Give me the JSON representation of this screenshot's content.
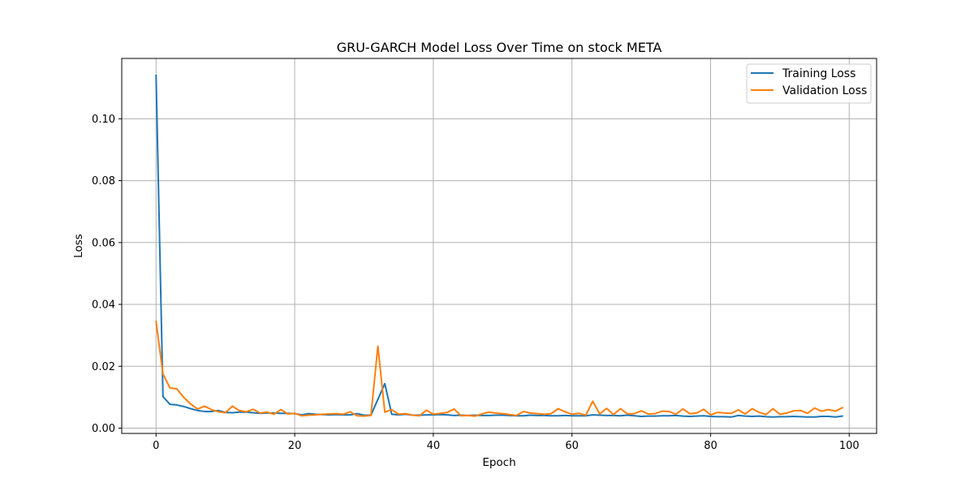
{
  "chart_data": {
    "type": "line",
    "title": "GRU-GARCH Model Loss Over Time on stock META",
    "xlabel": "Epoch",
    "ylabel": "Loss",
    "xlim": [
      -4.95,
      103.95
    ],
    "ylim": [
      -0.0017,
      0.1195
    ],
    "xticks": [
      0,
      20,
      40,
      60,
      80,
      100
    ],
    "xtick_labels": [
      "0",
      "20",
      "40",
      "60",
      "80",
      "100"
    ],
    "yticks": [
      0.0,
      0.02,
      0.04,
      0.06,
      0.08,
      0.1
    ],
    "ytick_labels": [
      "0.00",
      "0.02",
      "0.04",
      "0.06",
      "0.08",
      "0.10"
    ],
    "grid": true,
    "legend_position": "top-right",
    "series": [
      {
        "name": "Training Loss",
        "color": "#1f77b4",
        "x": [
          0,
          1,
          2,
          3,
          4,
          5,
          6,
          7,
          8,
          9,
          10,
          11,
          12,
          13,
          14,
          15,
          16,
          17,
          18,
          19,
          20,
          21,
          22,
          23,
          24,
          25,
          26,
          27,
          28,
          29,
          30,
          31,
          32,
          33,
          34,
          35,
          36,
          37,
          38,
          39,
          40,
          41,
          42,
          43,
          44,
          45,
          46,
          47,
          48,
          49,
          50,
          51,
          52,
          53,
          54,
          55,
          56,
          57,
          58,
          59,
          60,
          61,
          62,
          63,
          64,
          65,
          66,
          67,
          68,
          69,
          70,
          71,
          72,
          73,
          74,
          75,
          76,
          77,
          78,
          79,
          80,
          81,
          82,
          83,
          84,
          85,
          86,
          87,
          88,
          89,
          90,
          91,
          92,
          93,
          94,
          95,
          96,
          97,
          98,
          99
        ],
        "values": [
          0.114,
          0.0102,
          0.0077,
          0.0075,
          0.007,
          0.0063,
          0.0057,
          0.0054,
          0.0054,
          0.0057,
          0.0051,
          0.005,
          0.0052,
          0.0052,
          0.005,
          0.0048,
          0.0049,
          0.0049,
          0.0048,
          0.0048,
          0.0047,
          0.0043,
          0.0047,
          0.0045,
          0.0044,
          0.0043,
          0.0044,
          0.0043,
          0.0043,
          0.0047,
          0.0042,
          0.0042,
          0.0093,
          0.0144,
          0.0045,
          0.0043,
          0.0045,
          0.0042,
          0.0042,
          0.0043,
          0.0043,
          0.0044,
          0.0043,
          0.0041,
          0.0042,
          0.0041,
          0.0042,
          0.0041,
          0.0041,
          0.0042,
          0.0042,
          0.0041,
          0.004,
          0.004,
          0.0042,
          0.0041,
          0.0041,
          0.004,
          0.004,
          0.0041,
          0.004,
          0.004,
          0.004,
          0.0043,
          0.0042,
          0.0041,
          0.0041,
          0.004,
          0.0042,
          0.004,
          0.0038,
          0.0039,
          0.0039,
          0.004,
          0.004,
          0.0041,
          0.0039,
          0.0038,
          0.0039,
          0.004,
          0.0038,
          0.0037,
          0.0037,
          0.0036,
          0.0041,
          0.0039,
          0.0038,
          0.0039,
          0.0037,
          0.0036,
          0.0037,
          0.0037,
          0.0038,
          0.0037,
          0.0036,
          0.0036,
          0.0038,
          0.0038,
          0.0036,
          0.0039
        ]
      },
      {
        "name": "Validation Loss",
        "color": "#ff7f0e",
        "x": [
          0,
          1,
          2,
          3,
          4,
          5,
          6,
          7,
          8,
          9,
          10,
          11,
          12,
          13,
          14,
          15,
          16,
          17,
          18,
          19,
          20,
          21,
          22,
          23,
          24,
          25,
          26,
          27,
          28,
          29,
          30,
          31,
          32,
          33,
          34,
          35,
          36,
          37,
          38,
          39,
          40,
          41,
          42,
          43,
          44,
          45,
          46,
          47,
          48,
          49,
          50,
          51,
          52,
          53,
          54,
          55,
          56,
          57,
          58,
          59,
          60,
          61,
          62,
          63,
          64,
          65,
          66,
          67,
          68,
          69,
          70,
          71,
          72,
          73,
          74,
          75,
          76,
          77,
          78,
          79,
          80,
          81,
          82,
          83,
          84,
          85,
          86,
          87,
          88,
          89,
          90,
          91,
          92,
          93,
          94,
          95,
          96,
          97,
          98,
          99
        ],
        "values": [
          0.0345,
          0.0175,
          0.013,
          0.0127,
          0.0099,
          0.0078,
          0.0062,
          0.0071,
          0.006,
          0.0053,
          0.005,
          0.0071,
          0.0057,
          0.0053,
          0.0061,
          0.0049,
          0.0052,
          0.0045,
          0.006,
          0.0046,
          0.0048,
          0.004,
          0.0042,
          0.0043,
          0.0045,
          0.0046,
          0.0047,
          0.0045,
          0.0053,
          0.004,
          0.0039,
          0.0041,
          0.0265,
          0.0052,
          0.006,
          0.0045,
          0.0047,
          0.0042,
          0.004,
          0.0058,
          0.0045,
          0.0048,
          0.0051,
          0.0062,
          0.004,
          0.0041,
          0.0039,
          0.0046,
          0.0052,
          0.0049,
          0.0047,
          0.0044,
          0.0041,
          0.0054,
          0.0049,
          0.0047,
          0.0045,
          0.0047,
          0.0063,
          0.0053,
          0.0045,
          0.0048,
          0.0042,
          0.0087,
          0.0046,
          0.0064,
          0.0044,
          0.0063,
          0.0046,
          0.0047,
          0.0056,
          0.0046,
          0.0047,
          0.0055,
          0.0054,
          0.0045,
          0.0062,
          0.0047,
          0.0049,
          0.0061,
          0.0043,
          0.0051,
          0.0049,
          0.0048,
          0.0059,
          0.0046,
          0.0063,
          0.0051,
          0.0044,
          0.0063,
          0.0045,
          0.0049,
          0.0056,
          0.0057,
          0.0048,
          0.0065,
          0.0055,
          0.006,
          0.0055,
          0.0066
        ]
      }
    ]
  }
}
